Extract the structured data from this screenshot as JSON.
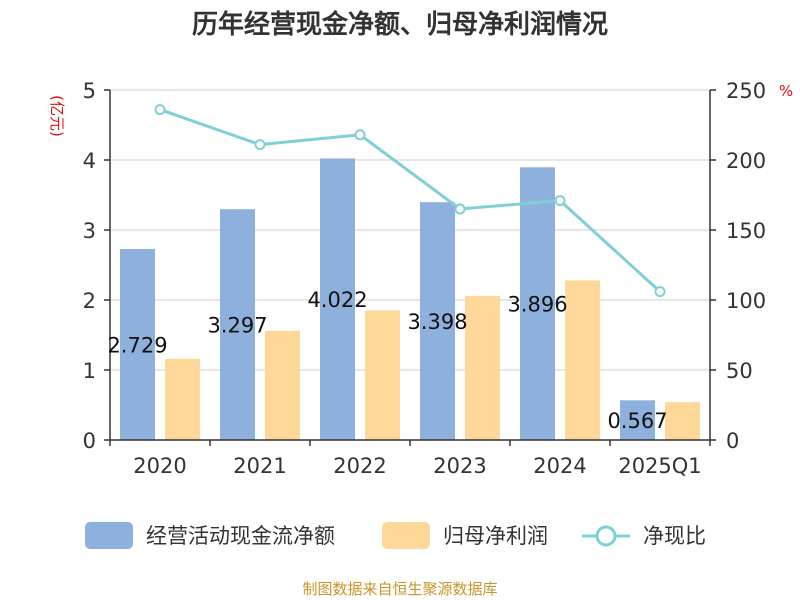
{
  "chart_data": {
    "type": "bar",
    "title": "历年经营现金净额、归母净利润情况",
    "categories": [
      "2020",
      "2021",
      "2022",
      "2023",
      "2024",
      "2025Q1"
    ],
    "y_left": {
      "unit": "(亿元)",
      "ylim": [
        0,
        5
      ],
      "ticks": [
        "0",
        "1",
        "2",
        "3",
        "4",
        "5"
      ]
    },
    "y_right": {
      "unit": "%",
      "ylim": [
        0,
        250
      ],
      "ticks": [
        "0",
        "50",
        "100",
        "150",
        "200",
        "250"
      ]
    },
    "series": [
      {
        "name": "经营活动现金流净额",
        "kind": "bar",
        "axis": "left",
        "color": "#8eb0dc",
        "values": [
          2.729,
          3.297,
          4.022,
          3.398,
          3.896,
          0.567
        ],
        "labels": [
          "2.729",
          "3.297",
          "4.022",
          "3.398",
          "3.896",
          "0.567"
        ]
      },
      {
        "name": "归母净利润",
        "kind": "bar",
        "axis": "left",
        "color": "#fed898",
        "values": [
          1.16,
          1.56,
          1.85,
          2.06,
          2.28,
          0.54
        ]
      },
      {
        "name": "净现比",
        "kind": "line",
        "axis": "right",
        "color": "#7fd0d6",
        "values": [
          236,
          211,
          218,
          165,
          171,
          106
        ]
      }
    ],
    "grid": true,
    "legend": "bottom"
  },
  "source": {
    "text": "制图数据来自恒生聚源数据库",
    "color": "#c8962a"
  }
}
